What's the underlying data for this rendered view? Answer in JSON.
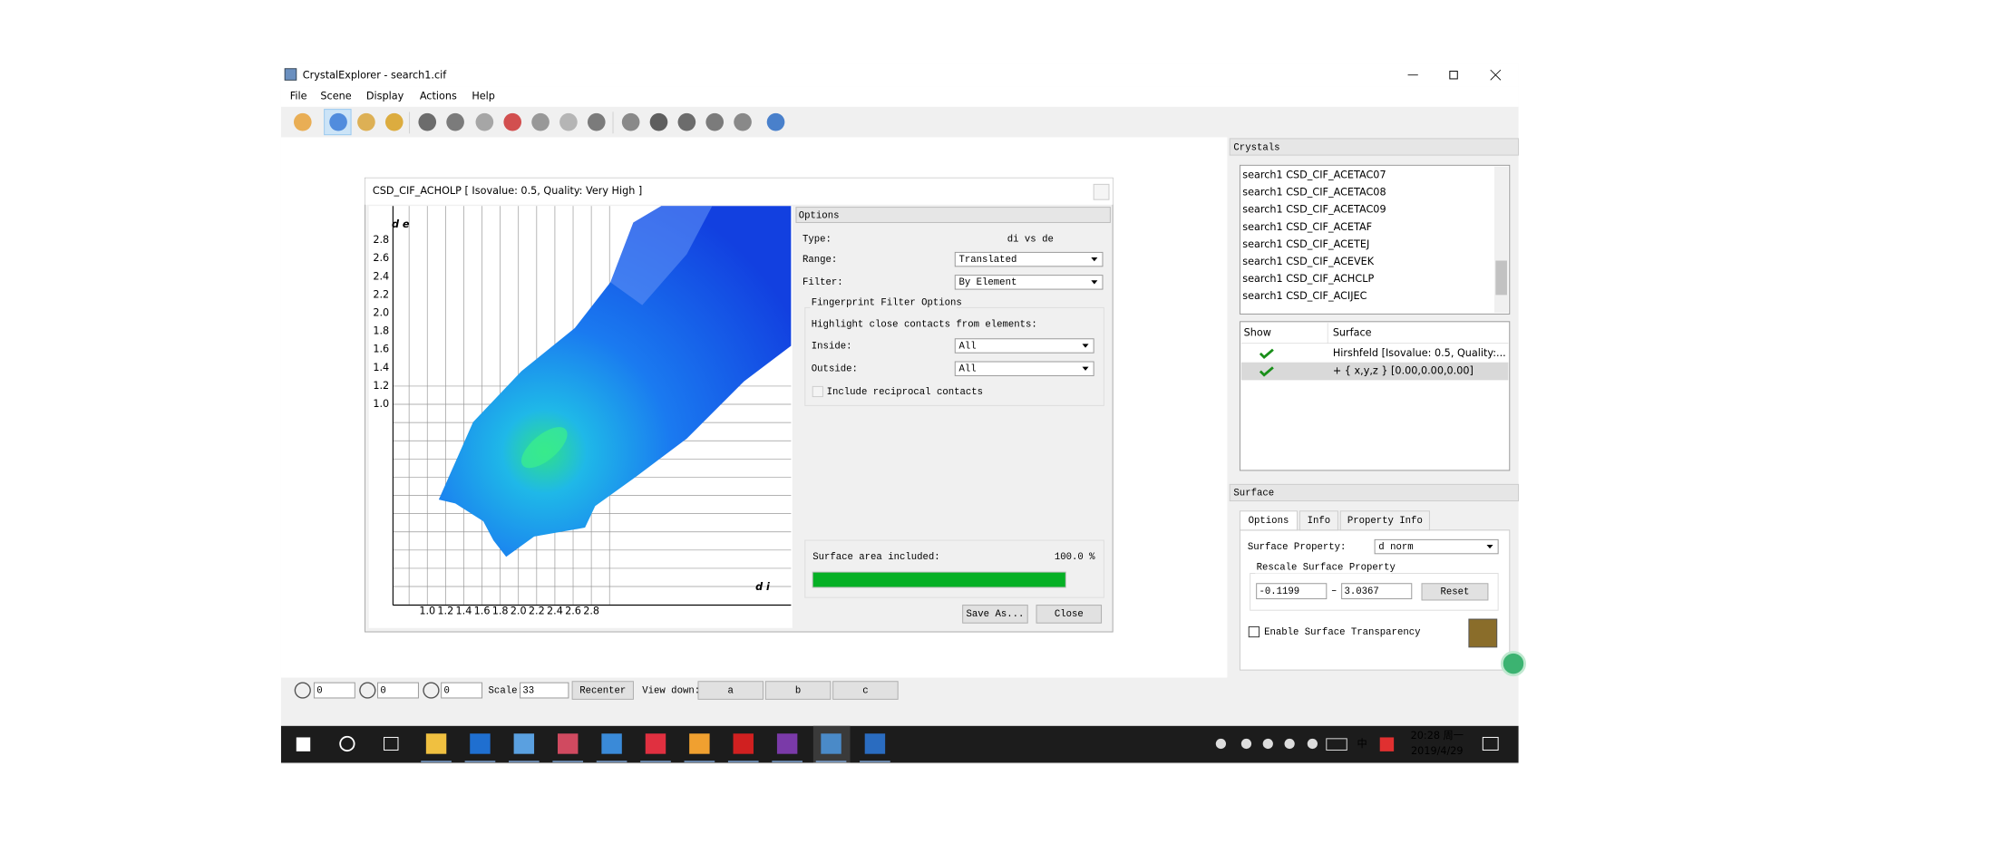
{
  "window": {
    "title": "CrystalExplorer - search1.cif",
    "menu": [
      "File",
      "Scene",
      "Display",
      "Actions",
      "Help"
    ]
  },
  "dialog": {
    "title": "CSD_CIF_ACHOLP [ Isovalue: 0.5, Quality: Very High ]",
    "plot": {
      "y_label": "d e",
      "x_label": "d i",
      "yticks": [
        "2.8",
        "2.6",
        "2.4",
        "2.2",
        "2.0",
        "1.8",
        "1.6",
        "1.4",
        "1.2",
        "1.0"
      ],
      "xticks": [
        "1.0",
        "1.2",
        "1.4",
        "1.6",
        "1.8",
        "2.0",
        "2.2",
        "2.4",
        "2.6",
        "2.8"
      ]
    },
    "options": {
      "header": "Options",
      "type_label": "Type:",
      "type_value": "di vs de",
      "range_label": "Range:",
      "range_value": "Translated",
      "filter_label": "Filter:",
      "filter_value": "By Element",
      "group_title": "Fingerprint Filter Options",
      "highlight": "Highlight close contacts from elements:",
      "inside_label": "Inside:",
      "inside_value": "All",
      "outside_label": "Outside:",
      "outside_value": "All",
      "reciprocal": "Include reciprocal contacts",
      "surface_area_label": "Surface area included:",
      "surface_area_value": "100.0 %"
    },
    "buttons": [
      "Save As...",
      "Close"
    ]
  },
  "crystals": {
    "header": "Crystals",
    "items": [
      "search1 CSD_CIF_ACETAC07",
      "search1 CSD_CIF_ACETAC08",
      "search1 CSD_CIF_ACETAC09",
      "search1 CSD_CIF_ACETAF",
      "search1 CSD_CIF_ACETEJ",
      "search1 CSD_CIF_ACEVEK",
      "search1 CSD_CIF_ACHCLP",
      "search1 CSD_CIF_ACIJEC"
    ]
  },
  "surfaces": {
    "columns": [
      "Show",
      "Surface"
    ],
    "rows": [
      "Hirshfeld [Isovalue: 0.5, Quality:...",
      "+ { x,y,z } [0.00,0.00,0.00]"
    ]
  },
  "surface_panel": {
    "header": "Surface",
    "tabs": [
      "Options",
      "Info",
      "Property Info"
    ],
    "property_label": "Surface Property:",
    "property_value": "d norm",
    "rescale_title": "Rescale Surface Property",
    "min": "-0.1199",
    "separator": "–",
    "max": "3.0367",
    "reset": "Reset",
    "transparency": "Enable Surface Transparency"
  },
  "bottom_bar": {
    "rotations": [
      "0",
      "0",
      "0"
    ],
    "scale_label": "Scale:",
    "scale_value": "33",
    "recenter": "Recenter",
    "view_down_label": "View down:",
    "view_buttons": [
      "a",
      "b",
      "c"
    ]
  },
  "taskbar": {
    "ime": "中",
    "time": "20:28 周一",
    "date": "2019/4/29"
  }
}
